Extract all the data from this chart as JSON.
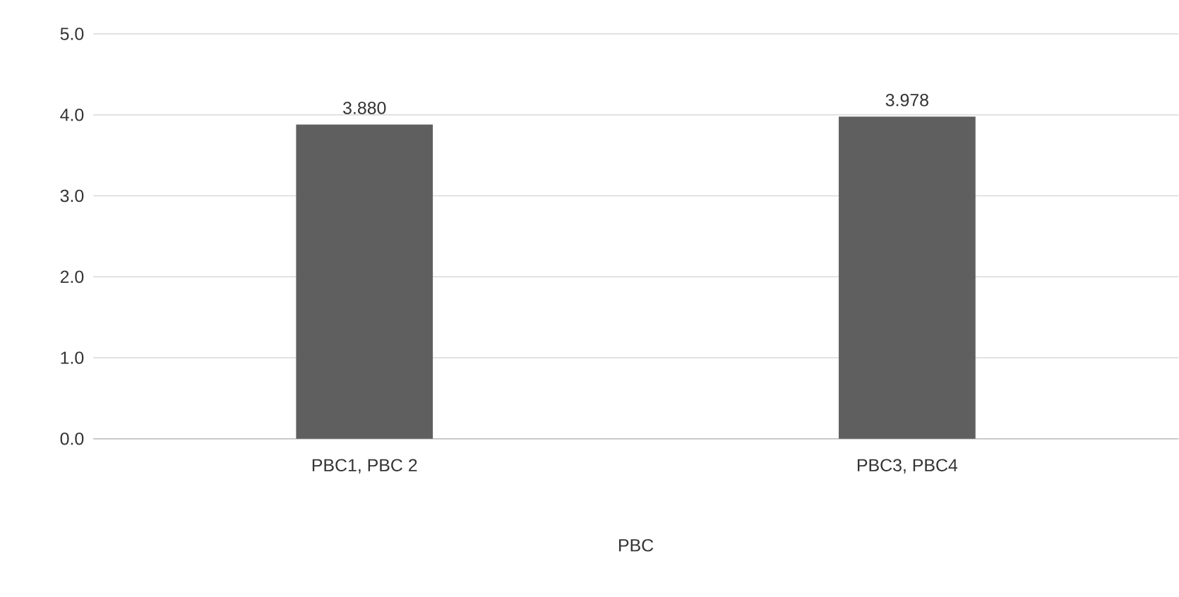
{
  "chart_data": {
    "type": "bar",
    "xlabel": "PBC",
    "categories": [
      "PBC1, PBC 2",
      "PBC3, PBC4"
    ],
    "values": [
      3.88,
      3.978
    ],
    "color": "#5f5f5f",
    "value_labels": [
      "3.880",
      "3.978"
    ],
    "ylim": [
      0,
      5
    ],
    "yticks": [
      {
        "value": 0,
        "label": "0.0"
      },
      {
        "value": 1,
        "label": "1.0"
      },
      {
        "value": 2,
        "label": "2.0"
      },
      {
        "value": 3,
        "label": "3.0"
      },
      {
        "value": 4,
        "label": "4.0"
      },
      {
        "value": 5,
        "label": "5.0"
      }
    ],
    "grid": "y"
  }
}
